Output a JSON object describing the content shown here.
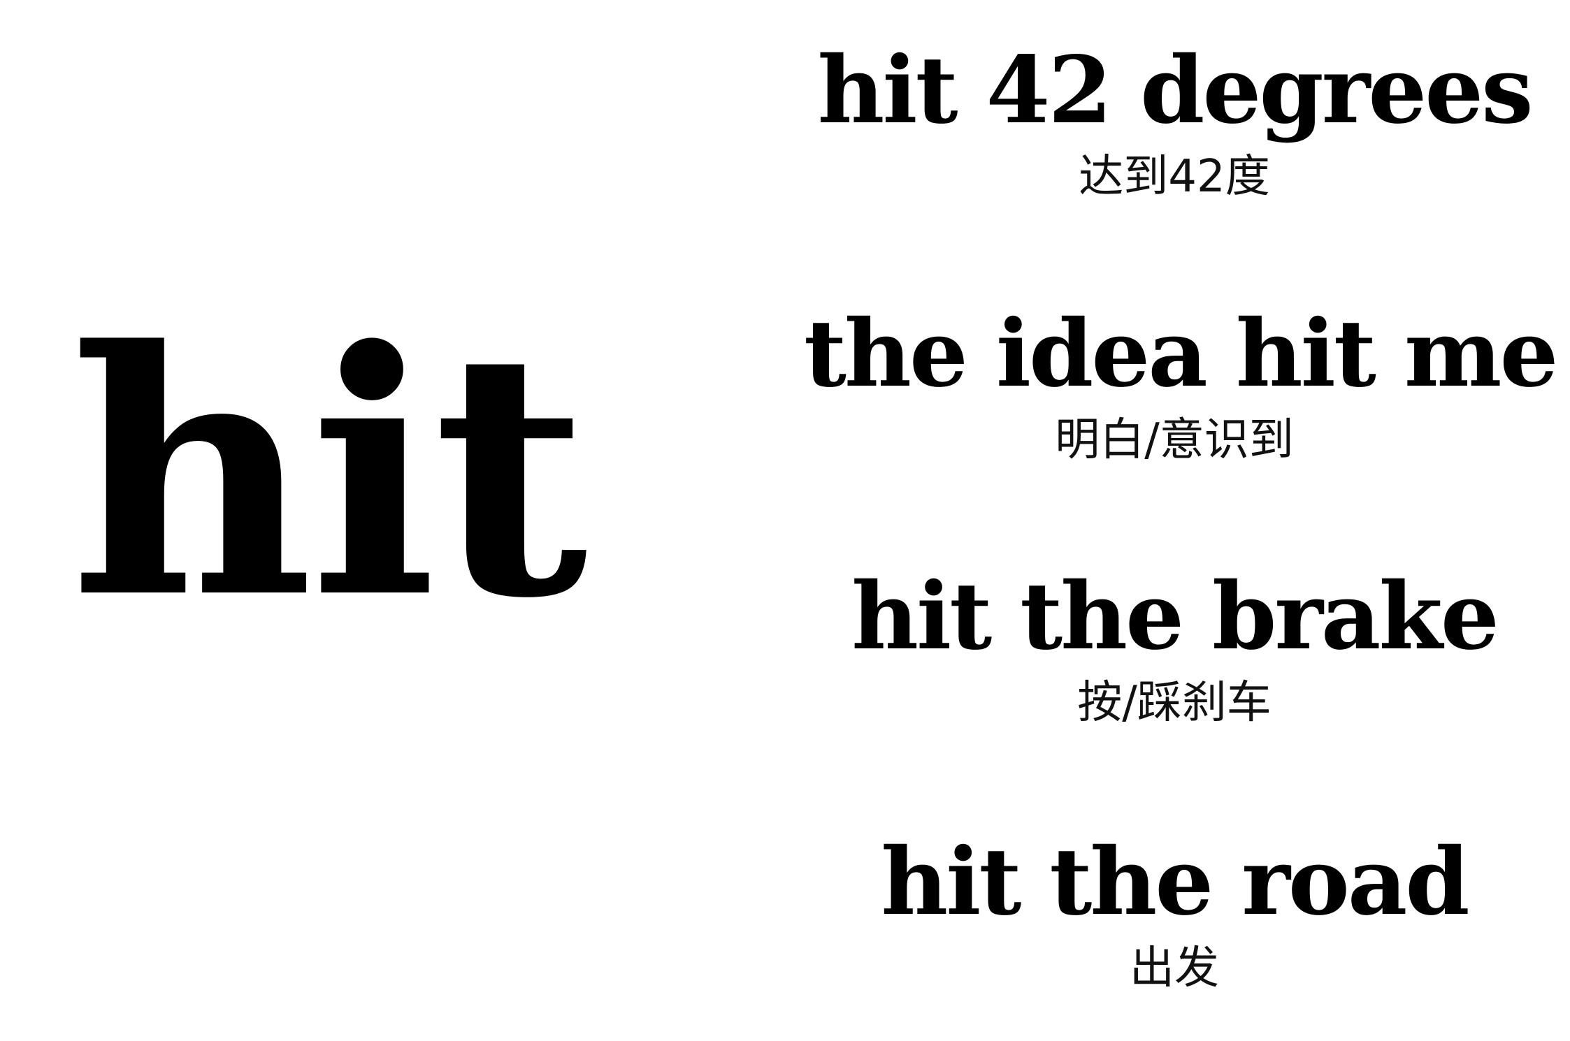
{
  "headword": "hit",
  "phrases": [
    {
      "en": "hit 42 degrees",
      "zh": "达到42度"
    },
    {
      "en": "the idea hit me",
      "zh": "明白/意识到"
    },
    {
      "en": "hit the brake",
      "zh": "按/踩刹车"
    },
    {
      "en": "hit the road",
      "zh": "出发"
    }
  ]
}
